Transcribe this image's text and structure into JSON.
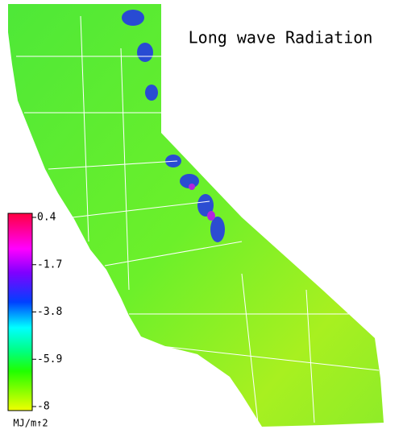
{
  "map": {
    "title": "Long wave Radiation"
  },
  "colorbar": {
    "clim": [
      -8.0,
      0.4
    ],
    "ticks": [
      0.4,
      -1.7,
      -3.8,
      -5.9,
      -8.0
    ],
    "unit": "MJ/m↑2"
  }
}
